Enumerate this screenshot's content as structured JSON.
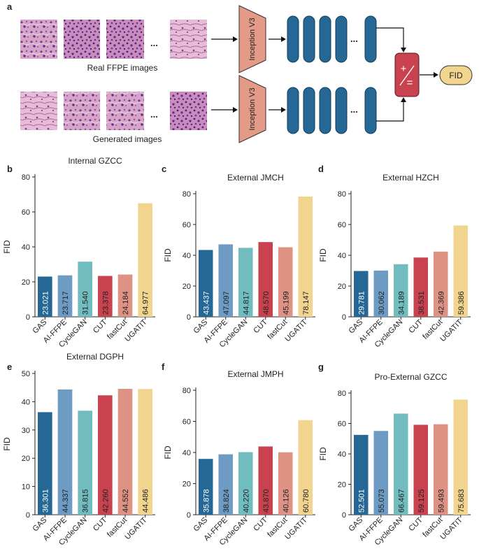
{
  "colors": {
    "GAS": "#256895",
    "AI-FFPE": "#6d9bc3",
    "CycleGAN": "#70bcbf",
    "CUT": "#c8434f",
    "fastCut": "#dd9283",
    "UGATIT": "#f1d58e"
  },
  "schematic": {
    "panel_label": "a",
    "real_label": "Real FFPE images",
    "generated_label": "Generated images",
    "inception_label": "Inception V3",
    "fid_label": "FID",
    "ellipsis": "..."
  },
  "chart_data": [
    {
      "panel": "b",
      "type": "bar",
      "title": "Internal GZCC",
      "ylabel": "FID",
      "ylim": [
        0,
        80
      ],
      "yticks": [
        "0",
        "20",
        "40",
        "60",
        "80"
      ],
      "categories": [
        "GAS",
        "AI-FFPE",
        "CycleGAN",
        "CUT",
        "fastCut",
        "UGATIT"
      ],
      "values": [
        23.021,
        23.717,
        31.54,
        23.378,
        24.184,
        64.977
      ],
      "labels": [
        "23.021",
        "23.717",
        "31.540",
        "23.378",
        "24.184",
        "64.977"
      ]
    },
    {
      "panel": "c",
      "type": "bar",
      "title": "External JMCH",
      "ylabel": "FID",
      "ylim": [
        0,
        80
      ],
      "yticks": [
        "0",
        "20",
        "40",
        "60",
        "80"
      ],
      "categories": [
        "GAS",
        "AI-FFPE",
        "CycleGAN",
        "CUT",
        "fastCut",
        "UGATIT"
      ],
      "values": [
        43.437,
        47.097,
        44.817,
        48.57,
        45.199,
        78.147
      ],
      "labels": [
        "43.437",
        "47.097",
        "44.817",
        "48.570",
        "45.199",
        "78.147"
      ]
    },
    {
      "panel": "d",
      "type": "bar",
      "title": "External HZCH",
      "ylabel": "FID",
      "ylim": [
        0,
        80
      ],
      "yticks": [
        "0",
        "20",
        "40",
        "60",
        "80"
      ],
      "categories": [
        "GAS",
        "AI-FFPE",
        "CycleGAN",
        "CUT",
        "fastCut",
        "UGATIT"
      ],
      "values": [
        29.781,
        30.062,
        34.189,
        38.531,
        42.369,
        59.386
      ],
      "labels": [
        "29.781",
        "30.062",
        "34.189",
        "38.531",
        "42.369",
        "59.386"
      ]
    },
    {
      "panel": "e",
      "type": "bar",
      "title": "External DGPH",
      "ylabel": "FID",
      "ylim": [
        0,
        50
      ],
      "yticks": [
        "0",
        "10",
        "20",
        "30",
        "40",
        "50"
      ],
      "categories": [
        "GAS",
        "AI-FFPE",
        "CycleGAN",
        "CUT",
        "fastCut",
        "UGATIT"
      ],
      "values": [
        36.301,
        44.337,
        36.815,
        42.26,
        44.552,
        44.486
      ],
      "labels": [
        "36.301",
        "44.337",
        "36.815",
        "42.260",
        "44.552",
        "44.486"
      ]
    },
    {
      "panel": "f",
      "type": "bar",
      "title": "External JMPH",
      "ylabel": "FID",
      "ylim": [
        0,
        80
      ],
      "yticks": [
        "0",
        "20",
        "40",
        "60",
        "80"
      ],
      "categories": [
        "GAS",
        "AI-FFPE",
        "CycleGAN",
        "CUT",
        "fastCut",
        "UGATIT"
      ],
      "values": [
        35.878,
        38.824,
        40.22,
        43.87,
        40.126,
        60.78
      ],
      "labels": [
        "35.878",
        "38.824",
        "40.220",
        "43.870",
        "40.126",
        "60.780"
      ]
    },
    {
      "panel": "g",
      "type": "bar",
      "title": "Pro-External GZCC",
      "ylabel": "FID",
      "ylim": [
        0,
        80
      ],
      "yticks": [
        "0",
        "20",
        "40",
        "60",
        "80"
      ],
      "categories": [
        "GAS",
        "AI-FFPE",
        "CycleGAN",
        "CUT",
        "fastCut",
        "UGATIT"
      ],
      "values": [
        52.501,
        55.073,
        66.467,
        59.125,
        59.493,
        75.683
      ],
      "labels": [
        "52.501",
        "55.073",
        "66.467",
        "59.125",
        "59.493",
        "75.683"
      ]
    }
  ]
}
